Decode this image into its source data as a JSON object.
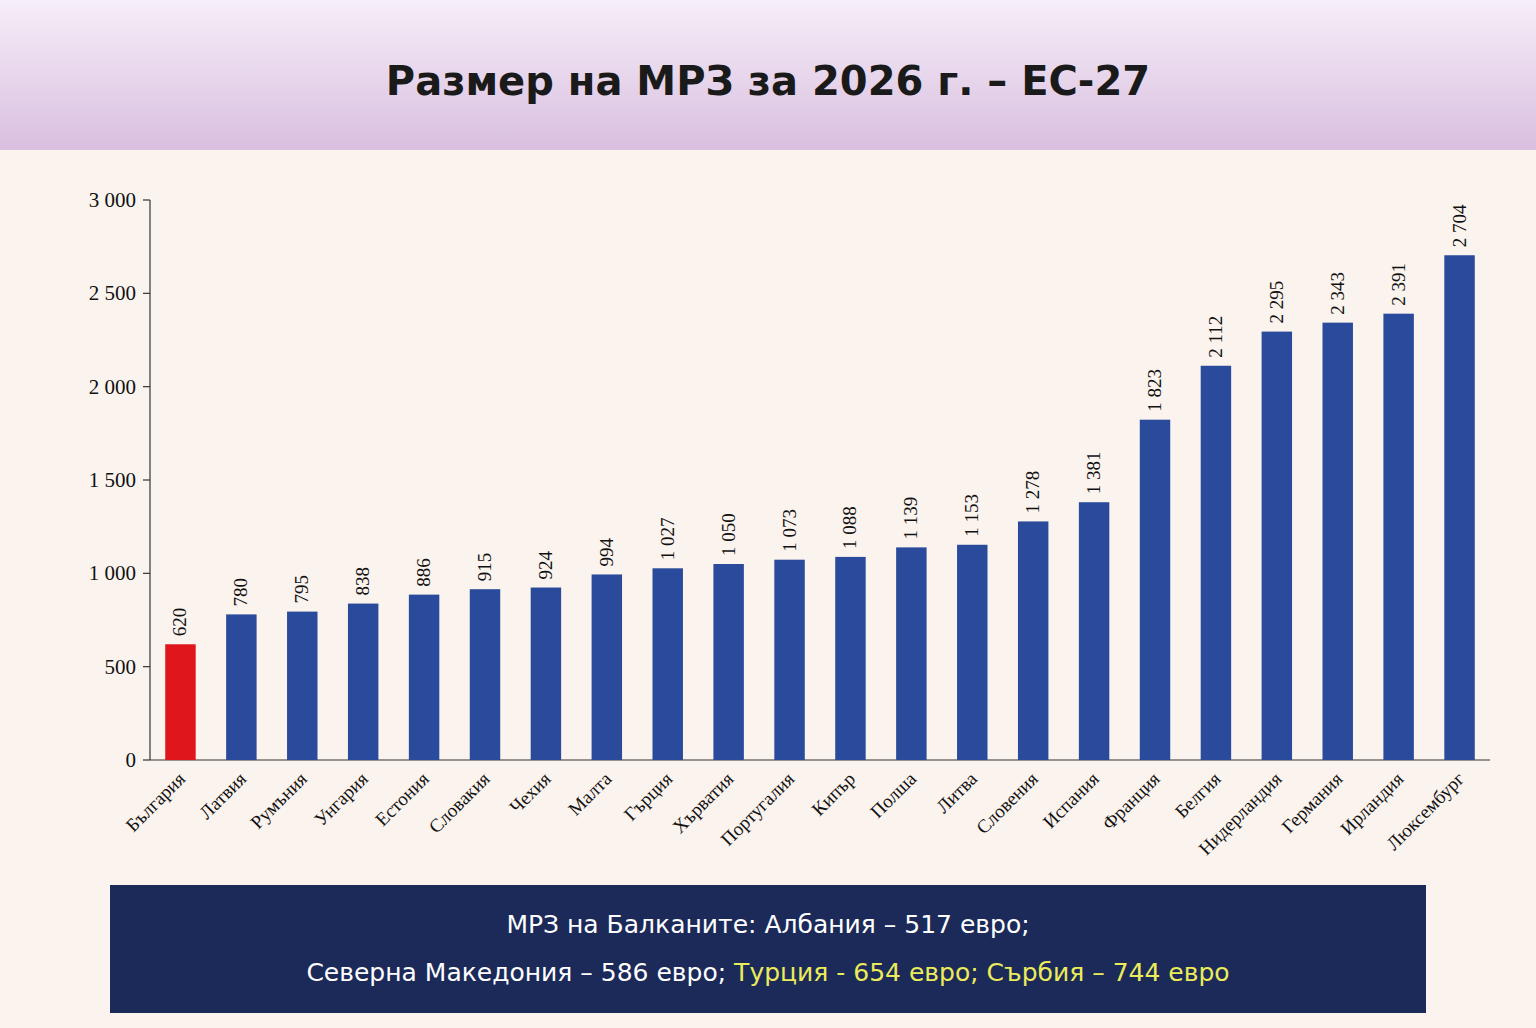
{
  "chart_data": {
    "type": "bar",
    "title": "Размер на МРЗ за 2026 г. – ЕС-27",
    "categories": [
      "България",
      "Латвия",
      "Румъния",
      "Унгария",
      "Естония",
      "Словакия",
      "Чехия",
      "Малта",
      "Гърция",
      "Хърватия",
      "Португалия",
      "Кипър",
      "Полша",
      "Литва",
      "Словения",
      "Испания",
      "Франция",
      "Белгия",
      "Нидерландия",
      "Германия",
      "Ирландия",
      "Люксембург"
    ],
    "values": [
      620,
      780,
      795,
      838,
      886,
      915,
      924,
      994,
      1027,
      1050,
      1073,
      1088,
      1139,
      1153,
      1278,
      1381,
      1823,
      2112,
      2295,
      2343,
      2391,
      2704
    ],
    "value_labels": [
      "620",
      "780",
      "795",
      "838",
      "886",
      "915",
      "924",
      "994",
      "1 027",
      "1 050",
      "1 073",
      "1 088",
      "1 139",
      "1 153",
      "1 278",
      "1 381",
      "1 823",
      "2 112",
      "2 295",
      "2 343",
      "2 391",
      "2 704"
    ],
    "colors": [
      "#e0161d",
      "#2a4b9b",
      "#2a4b9b",
      "#2a4b9b",
      "#2a4b9b",
      "#2a4b9b",
      "#2a4b9b",
      "#2a4b9b",
      "#2a4b9b",
      "#2a4b9b",
      "#2a4b9b",
      "#2a4b9b",
      "#2a4b9b",
      "#2a4b9b",
      "#2a4b9b",
      "#2a4b9b",
      "#2a4b9b",
      "#2a4b9b",
      "#2a4b9b",
      "#2a4b9b",
      "#2a4b9b",
      "#2a4b9b"
    ],
    "ylim": [
      0,
      3000
    ],
    "yticks": [
      0,
      500,
      {
        "value": 1000,
        "label": "1 000"
      },
      {
        "value": 1500,
        "label": "1 500"
      },
      {
        "value": 2000,
        "label": "2 000"
      },
      {
        "value": 2500,
        "label": "2 500"
      },
      {
        "value": 3000,
        "label": "3 000"
      }
    ],
    "grid": false,
    "data_labels": true,
    "annotations": [
      [
        {
          "text": "МРЗ на Балканите: Албания – 517 евро;",
          "color": "#ffffff"
        }
      ],
      [
        {
          "text": "Северна Македония – 586 евро; ",
          "color": "#ffffff"
        },
        {
          "text": "Турция - 654 евро; Сърбия – 744 евро",
          "color": "#ecec5a"
        }
      ]
    ]
  }
}
